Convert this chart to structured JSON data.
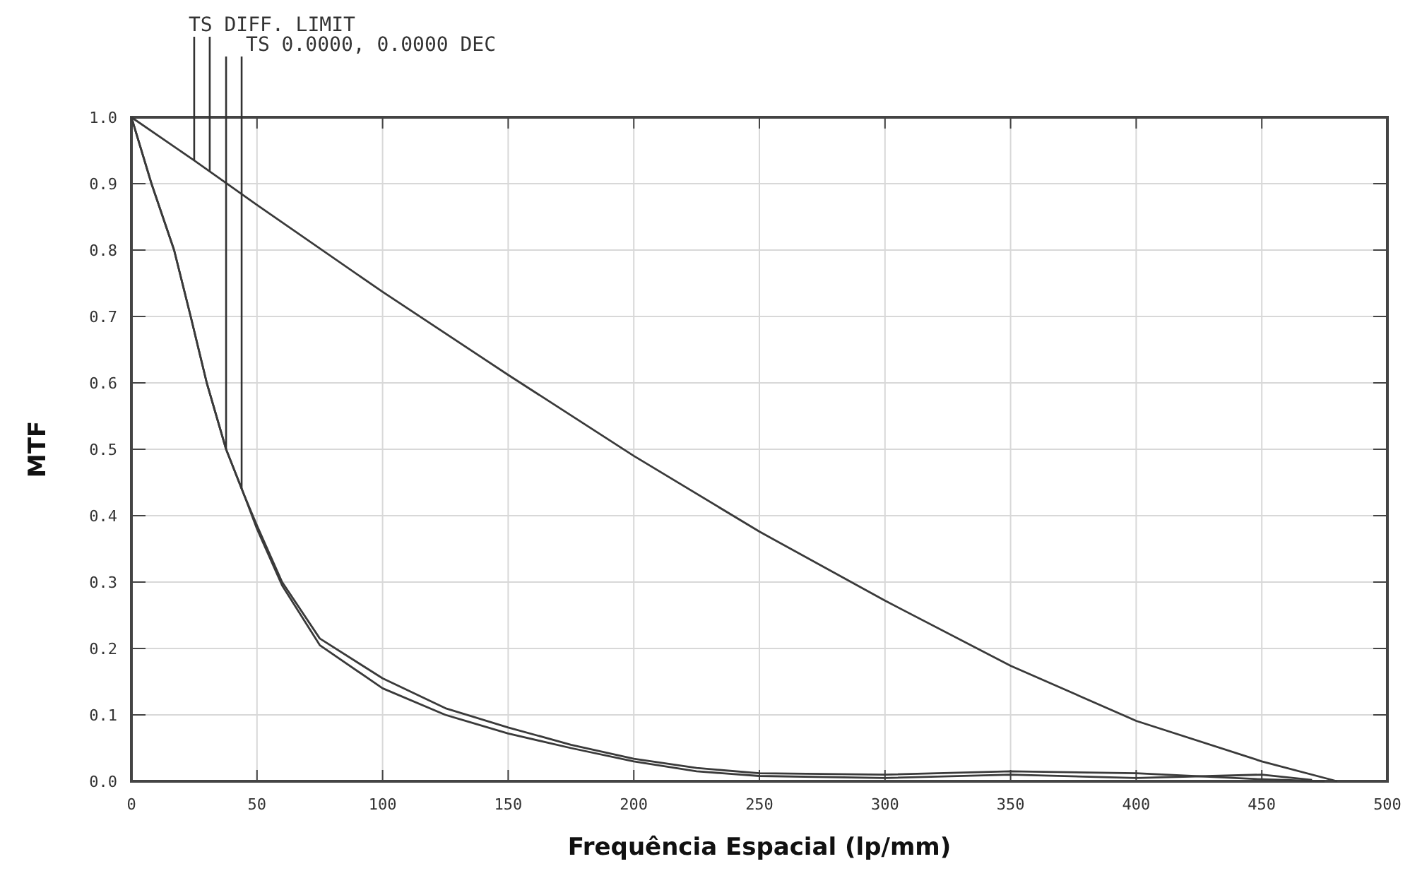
{
  "chart_data": {
    "type": "line",
    "xlabel": "Frequência Espacial (lp/mm)",
    "ylabel": "MTF",
    "xlim": [
      0,
      500
    ],
    "ylim": [
      0,
      1
    ],
    "xticks": [
      0,
      50,
      100,
      150,
      200,
      250,
      300,
      350,
      400,
      450,
      500
    ],
    "yticks": [
      {
        "value": 0,
        "label": "0.0"
      },
      {
        "value": 0.1,
        "label": "0.1"
      },
      {
        "value": 0.2,
        "label": "0.2"
      },
      {
        "value": 0.3,
        "label": "0.3"
      },
      {
        "value": 0.4,
        "label": "0.4"
      },
      {
        "value": 0.5,
        "label": "0.5"
      },
      {
        "value": 0.6,
        "label": "0.6"
      },
      {
        "value": 0.7,
        "label": "0.7"
      },
      {
        "value": 0.8,
        "label": "0.8"
      },
      {
        "value": 0.9,
        "label": "0.9"
      },
      {
        "value": 1,
        "label": "1.0"
      }
    ],
    "grid": true,
    "marker": "none",
    "line_style": "solid",
    "series": [
      {
        "color": "#3a3a3a",
        "x": [
          0,
          25,
          50,
          100,
          150,
          200,
          250,
          300,
          350,
          400,
          450,
          480
        ],
        "values": [
          1,
          0.935,
          0.868,
          0.737,
          0.612,
          0.49,
          0.376,
          0.272,
          0.174,
          0.091,
          0.03,
          0
        ]
      },
      {
        "color": "#3a3a3a",
        "x": [
          0,
          8,
          17,
          23.6,
          30,
          37.7,
          45,
          50,
          60,
          75,
          100,
          125,
          150,
          175,
          200,
          225,
          250,
          300,
          350,
          400,
          450,
          475
        ],
        "values": [
          1,
          0.9,
          0.8,
          0.7,
          0.6,
          0.5,
          0.43,
          0.385,
          0.3,
          0.215,
          0.155,
          0.11,
          0.081,
          0.055,
          0.034,
          0.02,
          0.012,
          0.01,
          0.015,
          0.012,
          0.003,
          0
        ]
      },
      {
        "color": "#3a3a3a",
        "x": [
          0,
          8,
          17,
          23.6,
          30,
          37.7,
          45,
          50,
          60,
          75,
          100,
          125,
          150,
          175,
          200,
          225,
          250,
          300,
          350,
          400,
          450,
          470
        ],
        "values": [
          1,
          0.9,
          0.8,
          0.7,
          0.6,
          0.5,
          0.43,
          0.38,
          0.295,
          0.205,
          0.14,
          0.1,
          0.072,
          0.05,
          0.03,
          0.015,
          0.008,
          0.005,
          0.01,
          0.005,
          0.01,
          0.002
        ]
      }
    ],
    "annotations": [
      {
        "text": "TS DIFF. LIMIT",
        "x": 25,
        "y": 0.935
      },
      {
        "text": "TS 0.0000, 0.0000 DEC",
        "x": 37.7,
        "y": 0.5
      }
    ]
  }
}
